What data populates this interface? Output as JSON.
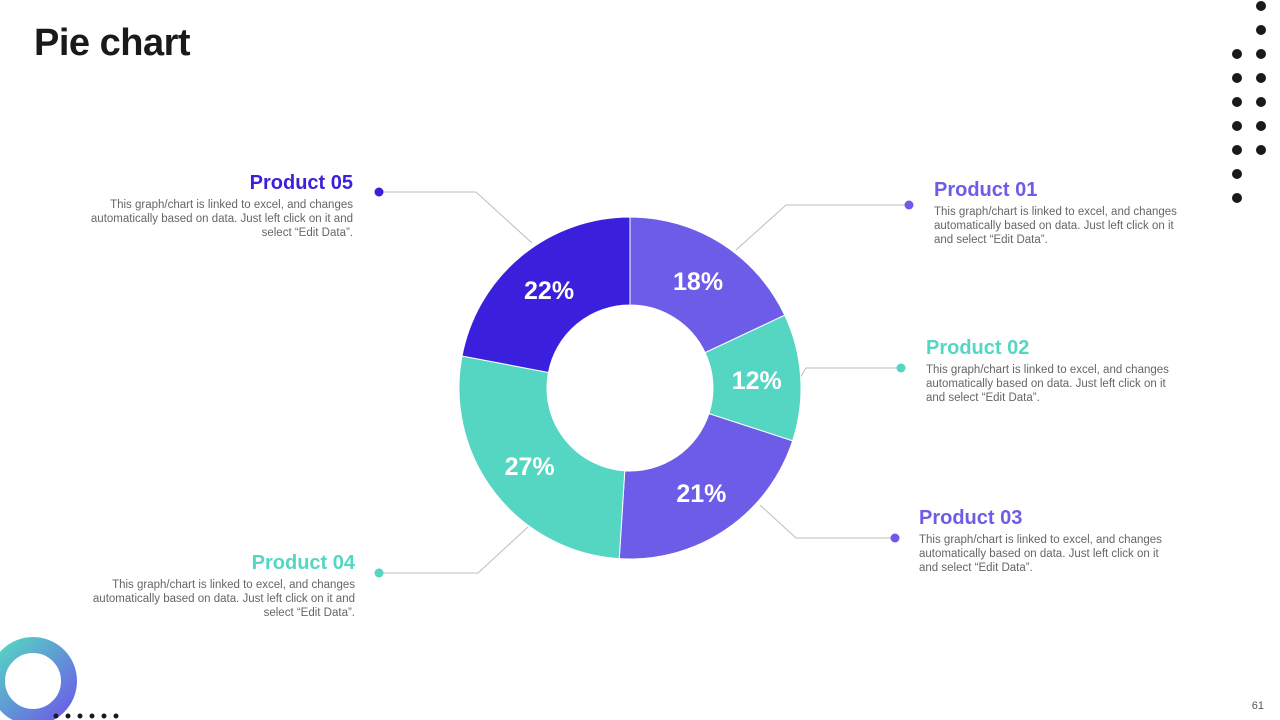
{
  "title": "Pie chart",
  "page_number": "61",
  "colors": {
    "violet": "#6C5CE7",
    "teal": "#55D6C2",
    "indigo": "#3A1FDC",
    "dark": "#1a1a1a"
  },
  "chart_data": {
    "type": "pie",
    "variant": "donut",
    "slices": [
      {
        "label": "Product 01",
        "value": 18,
        "display": "18%",
        "color": "#6C5CE7"
      },
      {
        "label": "Product 02",
        "value": 12,
        "display": "12%",
        "color": "#55D6C2"
      },
      {
        "label": "Product 03",
        "value": 21,
        "display": "21%",
        "color": "#6C5CE7"
      },
      {
        "label": "Product 04",
        "value": 27,
        "display": "27%",
        "color": "#55D6C2"
      },
      {
        "label": "Product 05",
        "value": 22,
        "display": "22%",
        "color": "#3A1FDC"
      }
    ]
  },
  "callouts": [
    {
      "name": "Product 01",
      "text": "This graph/chart is linked to excel,  and changes automatically based on data. Just left click on it and select “Edit Data”.",
      "color": "#6C5CE7"
    },
    {
      "name": "Product 02",
      "text": "This graph/chart is linked to excel,  and changes automatically based on data. Just left click on it and select “Edit Data”.",
      "color": "#55D6C2"
    },
    {
      "name": "Product 03",
      "text": "This graph/chart is linked to excel,  and changes automatically based on data. Just left click on it and select “Edit Data”.",
      "color": "#6C5CE7"
    },
    {
      "name": "Product 04",
      "text": "This graph/chart is linked to excel,  and changes automatically based on data. Just left click on it and select “Edit Data”.",
      "color": "#55D6C2"
    },
    {
      "name": "Product 05",
      "text": "This graph/chart is linked to excel,  and changes automatically based on data. Just left click on it and select “Edit Data”.",
      "color": "#3A1FDC"
    }
  ]
}
